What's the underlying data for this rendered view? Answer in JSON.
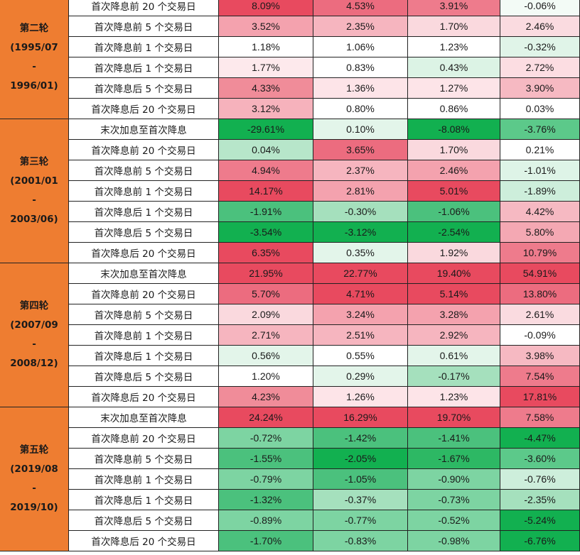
{
  "palette": {
    "header_orange": "#ee7d31",
    "positive_max": "#e84a5f",
    "neutral": "#ffffff",
    "negative_max": "#0fb04f"
  },
  "rounds": [
    {
      "label": "第二轮\n(1995/07\n-\n1996/01)",
      "rows": [
        {
          "label": "首次降息前 20 个交易日",
          "values": [
            "8.09%",
            "4.53%",
            "3.91%",
            "-0.06%"
          ],
          "colors": [
            "#e84a5f",
            "#ec6c7f",
            "#ee7b8c",
            "#f3fbf6"
          ]
        },
        {
          "label": "首次降息前 5 个交易日",
          "values": [
            "3.52%",
            "2.35%",
            "1.70%",
            "2.46%"
          ],
          "colors": [
            "#f4a2ae",
            "#f6b5bf",
            "#fad9de",
            "#fadbe0"
          ]
        },
        {
          "label": "首次降息前 1 个交易日",
          "values": [
            "1.18%",
            "1.06%",
            "1.23%",
            "-0.32%"
          ],
          "colors": [
            "#ffffff",
            "#ffffff",
            "#ffffff",
            "#e0f4e8"
          ]
        },
        {
          "label": "首次降息后 1 个交易日",
          "values": [
            "1.77%",
            "0.83%",
            "0.43%",
            "2.72%"
          ],
          "colors": [
            "#fde9ec",
            "#ffffff",
            "#dcf3e5",
            "#fcdde2"
          ]
        },
        {
          "label": "首次降息后 5 个交易日",
          "values": [
            "4.33%",
            "1.36%",
            "1.27%",
            "3.90%"
          ],
          "colors": [
            "#f08c99",
            "#fde4e8",
            "#fde4e8",
            "#f6b9c2"
          ]
        },
        {
          "label": "首次降息后 20 个交易日",
          "values": [
            "3.12%",
            "0.80%",
            "0.86%",
            "0.03%"
          ],
          "colors": [
            "#f6b2bc",
            "#ffffff",
            "#ffffff",
            "#ffffff"
          ]
        }
      ]
    },
    {
      "label": "第三轮\n(2001/01\n-\n2003/06)",
      "rows": [
        {
          "label": "末次加息至首次降息",
          "values": [
            "-29.61%",
            "0.10%",
            "-8.08%",
            "-3.76%"
          ],
          "colors": [
            "#12b050",
            "#e3f5ea",
            "#12b050",
            "#5cc98a"
          ]
        },
        {
          "label": "首次降息前 20 个交易日",
          "values": [
            "0.04%",
            "3.65%",
            "1.70%",
            "0.21%"
          ],
          "colors": [
            "#b7e6ca",
            "#ec6c7f",
            "#fad9de",
            "#ffffff"
          ]
        },
        {
          "label": "首次降息前 5 个交易日",
          "values": [
            "4.94%",
            "2.37%",
            "2.46%",
            "-1.01%"
          ],
          "colors": [
            "#ee7b8c",
            "#f6b5bf",
            "#f4a2ae",
            "#def4e7"
          ]
        },
        {
          "label": "首次降息前 1 个交易日",
          "values": [
            "14.17%",
            "2.81%",
            "5.01%",
            "-1.89%"
          ],
          "colors": [
            "#e84a5f",
            "#f4a2ae",
            "#e84a5f",
            "#cdeedb"
          ]
        },
        {
          "label": "首次降息后 1 个交易日",
          "values": [
            "-1.91%",
            "-0.30%",
            "-1.06%",
            "4.42%"
          ],
          "colors": [
            "#4bc17d",
            "#a5e0bd",
            "#4bc17d",
            "#f6b9c2"
          ]
        },
        {
          "label": "首次降息后 5 个交易日",
          "values": [
            "-3.54%",
            "-3.12%",
            "-2.54%",
            "5.80%"
          ],
          "colors": [
            "#12b050",
            "#12b050",
            "#12b050",
            "#f4a8b3"
          ]
        },
        {
          "label": "首次降息后 20 个交易日",
          "values": [
            "6.35%",
            "0.35%",
            "1.92%",
            "10.79%"
          ],
          "colors": [
            "#e84a5f",
            "#e3f5ea",
            "#fad9de",
            "#ee7b8c"
          ]
        }
      ]
    },
    {
      "label": "第四轮\n(2007/09\n-\n2008/12)",
      "rows": [
        {
          "label": "末次加息至首次降息",
          "values": [
            "21.95%",
            "22.77%",
            "19.40%",
            "54.91%"
          ],
          "colors": [
            "#e84a5f",
            "#e84a5f",
            "#e84a5f",
            "#e84a5f"
          ]
        },
        {
          "label": "首次降息前 20 个交易日",
          "values": [
            "5.70%",
            "4.71%",
            "5.14%",
            "13.80%"
          ],
          "colors": [
            "#ec6c7f",
            "#e84a5f",
            "#e84a5f",
            "#ec6c7f"
          ]
        },
        {
          "label": "首次降息前 5 个交易日",
          "values": [
            "2.09%",
            "3.24%",
            "3.28%",
            "2.61%"
          ],
          "colors": [
            "#fad9de",
            "#f4a2ae",
            "#f4a2ae",
            "#fadbe0"
          ]
        },
        {
          "label": "首次降息前 1 个交易日",
          "values": [
            "2.71%",
            "2.51%",
            "2.92%",
            "-0.09%"
          ],
          "colors": [
            "#f6b5bf",
            "#f6b5bf",
            "#f6b5bf",
            "#ffffff"
          ]
        },
        {
          "label": "首次降息后 1 个交易日",
          "values": [
            "0.56%",
            "0.55%",
            "0.61%",
            "3.98%"
          ],
          "colors": [
            "#e3f5ea",
            "#ffffff",
            "#e3f5ea",
            "#f6b9c2"
          ]
        },
        {
          "label": "首次降息后 5 个交易日",
          "values": [
            "1.20%",
            "0.29%",
            "-0.17%",
            "7.54%"
          ],
          "colors": [
            "#ffffff",
            "#e3f5ea",
            "#a5e0bd",
            "#ee7b8c"
          ]
        },
        {
          "label": "首次降息后 20 个交易日",
          "values": [
            "4.23%",
            "1.26%",
            "1.23%",
            "17.81%"
          ],
          "colors": [
            "#f08c99",
            "#fde4e8",
            "#fde4e8",
            "#e84a5f"
          ]
        }
      ]
    },
    {
      "label": "第五轮\n(2019/08\n-\n2019/10)",
      "rows": [
        {
          "label": "末次加息至首次降息",
          "values": [
            "24.24%",
            "16.29%",
            "19.70%",
            "7.58%"
          ],
          "colors": [
            "#e84a5f",
            "#e84a5f",
            "#e84a5f",
            "#ee7b8c"
          ]
        },
        {
          "label": "首次降息前 20 个交易日",
          "values": [
            "-0.72%",
            "-1.42%",
            "-1.41%",
            "-4.47%"
          ],
          "colors": [
            "#7dd4a2",
            "#4bc17d",
            "#4bc17d",
            "#12b050"
          ]
        },
        {
          "label": "首次降息前 5 个交易日",
          "values": [
            "-1.55%",
            "-2.05%",
            "-1.67%",
            "-3.60%"
          ],
          "colors": [
            "#4bc17d",
            "#12b050",
            "#2db864",
            "#5cc98a"
          ]
        },
        {
          "label": "首次降息前 1 个交易日",
          "values": [
            "-0.79%",
            "-1.05%",
            "-0.90%",
            "-0.76%"
          ],
          "colors": [
            "#7dd4a2",
            "#4bc17d",
            "#7dd4a2",
            "#cdeedb"
          ]
        },
        {
          "label": "首次降息后 1 个交易日",
          "values": [
            "-1.32%",
            "-0.37%",
            "-0.73%",
            "-2.35%"
          ],
          "colors": [
            "#4bc17d",
            "#a5e0bd",
            "#7dd4a2",
            "#a5e0bd"
          ]
        },
        {
          "label": "首次降息后 5 个交易日",
          "values": [
            "-0.89%",
            "-0.77%",
            "-0.52%",
            "-5.24%"
          ],
          "colors": [
            "#7dd4a2",
            "#7dd4a2",
            "#7dd4a2",
            "#12b050"
          ]
        },
        {
          "label": "首次降息后 20 个交易日",
          "values": [
            "-1.70%",
            "-0.83%",
            "-0.98%",
            "-6.76%"
          ],
          "colors": [
            "#4bc17d",
            "#7dd4a2",
            "#7dd4a2",
            "#12b050"
          ]
        }
      ]
    }
  ]
}
